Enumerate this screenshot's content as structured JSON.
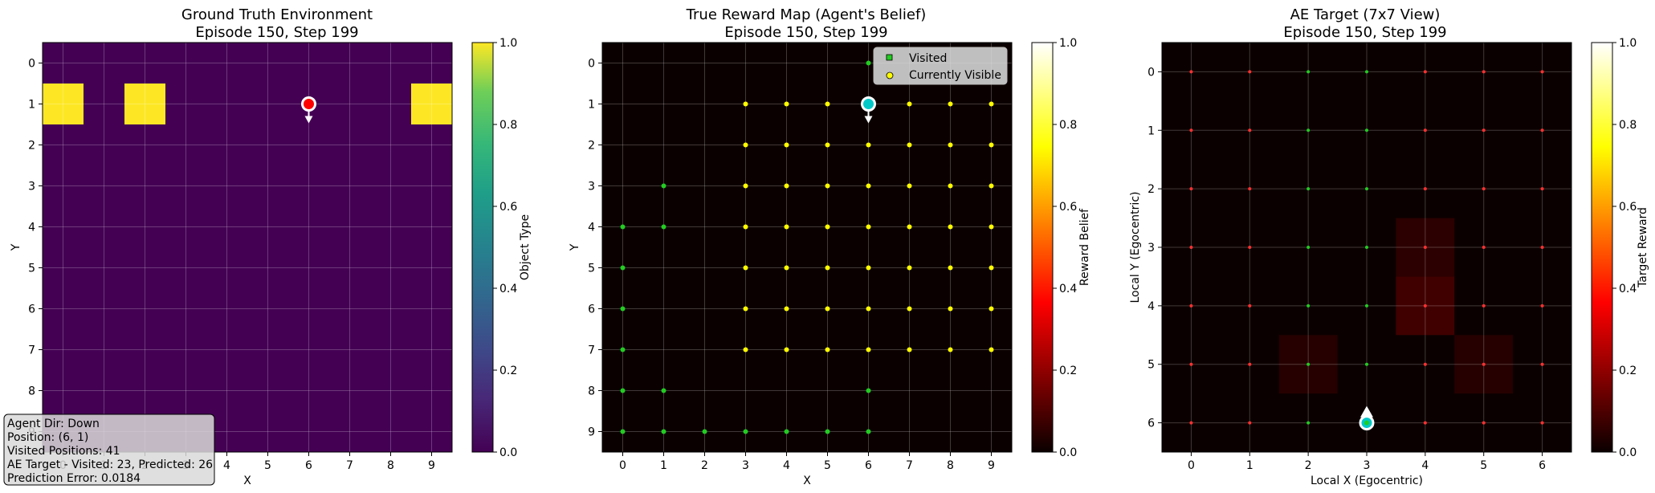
{
  "chart_data": [
    {
      "type": "heatmap",
      "title": "Ground Truth Environment",
      "subtitle": "Episode 150, Step 199",
      "xlabel": "X",
      "ylabel": "Y",
      "x_ticks": [
        "0",
        "1",
        "2",
        "3",
        "4",
        "5",
        "6",
        "7",
        "8",
        "9"
      ],
      "y_ticks": [
        "0",
        "1",
        "2",
        "3",
        "4",
        "5",
        "6",
        "7",
        "8",
        "9"
      ],
      "xlim": [
        -0.5,
        9.5
      ],
      "ylim": [
        9.5,
        -0.5
      ],
      "grid": true,
      "colormap": "viridis",
      "colorbar": {
        "label": "Object Type",
        "ticks": [
          "0.0",
          "0.2",
          "0.4",
          "0.6",
          "0.8",
          "1.0"
        ],
        "range": [
          0,
          1
        ]
      },
      "cells": [
        {
          "x": 0,
          "y": 1,
          "value": 1.0
        },
        {
          "x": 2,
          "y": 1,
          "value": 1.0
        },
        {
          "x": 9,
          "y": 1,
          "value": 1.0
        }
      ],
      "background_value": 0.0,
      "agent": {
        "x": 6,
        "y": 1,
        "direction": "down",
        "color": "#ff0000"
      },
      "info_box": [
        "Agent Dir: Down",
        "Position: (6, 1)",
        "Visited Positions: 41",
        "AE Target - Visited: 23, Predicted: 26",
        "Prediction Error: 0.0184"
      ]
    },
    {
      "type": "heatmap",
      "title": "True Reward Map (Agent's Belief)",
      "subtitle": "Episode 150, Step 199",
      "xlabel": "X",
      "ylabel": "Y",
      "x_ticks": [
        "0",
        "1",
        "2",
        "3",
        "4",
        "5",
        "6",
        "7",
        "8",
        "9"
      ],
      "y_ticks": [
        "0",
        "1",
        "2",
        "3",
        "4",
        "5",
        "6",
        "7",
        "8",
        "9"
      ],
      "xlim": [
        -0.5,
        9.5
      ],
      "ylim": [
        9.5,
        -0.5
      ],
      "grid": true,
      "colormap": "hot",
      "colorbar": {
        "label": "Reward Belief",
        "ticks": [
          "0.0",
          "0.2",
          "0.4",
          "0.6",
          "0.8",
          "1.0"
        ],
        "range": [
          0,
          1
        ]
      },
      "background_value": 0.0,
      "legend": {
        "placement": "top-right",
        "entries": [
          {
            "label": "Visited",
            "marker": "square",
            "color": "#22cc22"
          },
          {
            "label": "Currently Visible",
            "marker": "circle",
            "color": "#ffff00"
          }
        ]
      },
      "visited": [
        [
          1,
          3
        ],
        [
          0,
          4
        ],
        [
          1,
          4
        ],
        [
          0,
          5
        ],
        [
          0,
          6
        ],
        [
          0,
          7
        ],
        [
          0,
          8
        ],
        [
          1,
          8
        ],
        [
          6,
          8
        ],
        [
          0,
          9
        ],
        [
          1,
          9
        ],
        [
          2,
          9
        ],
        [
          3,
          9
        ],
        [
          4,
          9
        ],
        [
          5,
          9
        ],
        [
          6,
          9
        ],
        [
          6,
          0
        ]
      ],
      "visible": {
        "x_range": [
          3,
          9
        ],
        "y_range": [
          1,
          7
        ]
      },
      "agent": {
        "x": 6,
        "y": 1,
        "direction": "down",
        "color": "#00c8c8"
      }
    },
    {
      "type": "heatmap",
      "title": "AE Target (7x7 View)",
      "subtitle": "Episode 150, Step 199",
      "xlabel": "Local X (Egocentric)",
      "ylabel": "Local Y (Egocentric)",
      "x_ticks": [
        "0",
        "1",
        "2",
        "3",
        "4",
        "5",
        "6"
      ],
      "y_ticks": [
        "0",
        "1",
        "2",
        "3",
        "4",
        "5",
        "6"
      ],
      "xlim": [
        -0.5,
        6.5
      ],
      "ylim": [
        6.5,
        -0.5
      ],
      "grid": true,
      "colormap": "hot",
      "colorbar": {
        "label": "Target Reward",
        "ticks": [
          "0.0",
          "0.2",
          "0.4",
          "0.6",
          "0.8",
          "1.0"
        ],
        "range": [
          0,
          1
        ]
      },
      "cells": [
        {
          "x": 4,
          "y": 3,
          "value": 0.05
        },
        {
          "x": 4,
          "y": 4,
          "value": 0.08
        },
        {
          "x": 2,
          "y": 5,
          "value": 0.04
        },
        {
          "x": 5,
          "y": 5,
          "value": 0.04
        }
      ],
      "dot_columns": {
        "red": [
          0,
          1,
          4,
          5,
          6
        ],
        "green": [
          2,
          3
        ]
      },
      "agent": {
        "x": 3,
        "y": 6,
        "direction": "up",
        "color": "#00c8c8"
      }
    }
  ]
}
